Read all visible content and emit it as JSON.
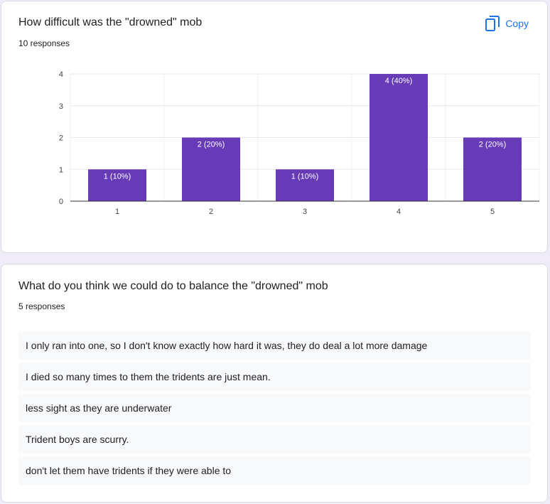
{
  "question1": {
    "title": "How difficult was the \"drowned\" mob",
    "response_count": "10 responses",
    "copy_label": "Copy"
  },
  "chart_data": {
    "type": "bar",
    "categories": [
      "1",
      "2",
      "3",
      "4",
      "5"
    ],
    "values": [
      1,
      2,
      1,
      4,
      2
    ],
    "data_labels": [
      "1 (10%)",
      "2 (20%)",
      "1 (10%)",
      "4 (40%)",
      "2 (20%)"
    ],
    "y_ticks": [
      "0",
      "1",
      "2",
      "3",
      "4"
    ],
    "ylim": [
      0,
      4
    ],
    "title": "",
    "xlabel": "",
    "ylabel": "",
    "grid": true,
    "bar_color": "#673ab7"
  },
  "question2": {
    "title": "What do you think we could do to balance the \"drowned\" mob",
    "response_count": "5 responses",
    "responses": [
      "I only ran into one, so I don't know exactly how hard it was, they do deal a lot more damage",
      "I died so many times to them the tridents are just mean.",
      "less sight as they are underwater",
      "Trident boys are scurry.",
      "don't let them have tridents if they were able to"
    ]
  },
  "colors": {
    "accent": "#1a73e8",
    "bar": "#673ab7",
    "page_background": "#f0ebf8"
  }
}
